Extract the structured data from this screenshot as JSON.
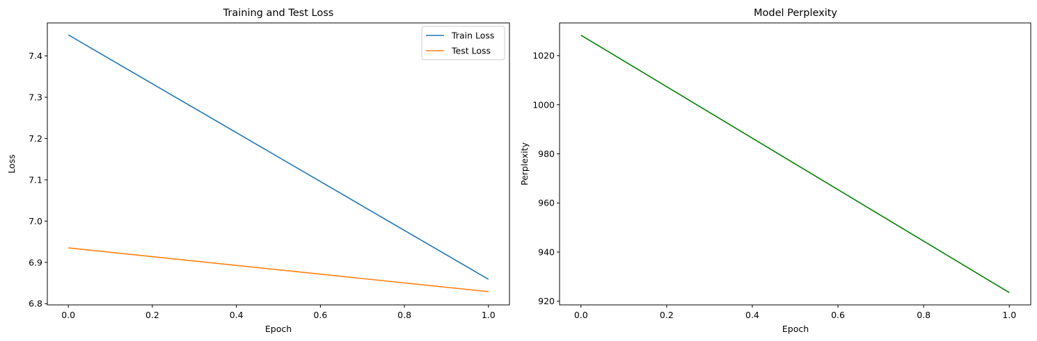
{
  "chart_data": [
    {
      "type": "line",
      "title": "Training and Test Loss",
      "xlabel": "Epoch",
      "ylabel": "Loss",
      "x": [
        0,
        1
      ],
      "xlim": [
        -0.05,
        1.05
      ],
      "ylim": [
        6.797,
        7.48
      ],
      "xticks": [
        0.0,
        0.2,
        0.4,
        0.6,
        0.8,
        1.0
      ],
      "xtick_labels": [
        "0.0",
        "0.2",
        "0.4",
        "0.6",
        "0.8",
        "1.0"
      ],
      "yticks": [
        6.8,
        6.9,
        7.0,
        7.1,
        7.2,
        7.3,
        7.4
      ],
      "ytick_labels": [
        "6.8",
        "6.9",
        "7.0",
        "7.1",
        "7.2",
        "7.3",
        "7.4"
      ],
      "grid": false,
      "legend_position": "top-right",
      "series": [
        {
          "name": "Train Loss",
          "values": [
            7.451,
            6.859
          ],
          "color": "#1f77b4"
        },
        {
          "name": "Test Loss",
          "values": [
            6.935,
            6.829
          ],
          "color": "#ff7f0e"
        }
      ]
    },
    {
      "type": "line",
      "title": "Model Perplexity",
      "xlabel": "Epoch",
      "ylabel": "Perplexity",
      "x": [
        0,
        1
      ],
      "xlim": [
        -0.05,
        1.05
      ],
      "ylim": [
        918.5,
        1033.3
      ],
      "xticks": [
        0.0,
        0.2,
        0.4,
        0.6,
        0.8,
        1.0
      ],
      "xtick_labels": [
        "0.0",
        "0.2",
        "0.4",
        "0.6",
        "0.8",
        "1.0"
      ],
      "yticks": [
        920,
        940,
        960,
        980,
        1000,
        1020
      ],
      "ytick_labels": [
        "920",
        "940",
        "960",
        "980",
        "1000",
        "1020"
      ],
      "grid": false,
      "series": [
        {
          "values": [
            1028.3,
            923.5
          ],
          "color": "#008000"
        }
      ]
    }
  ]
}
